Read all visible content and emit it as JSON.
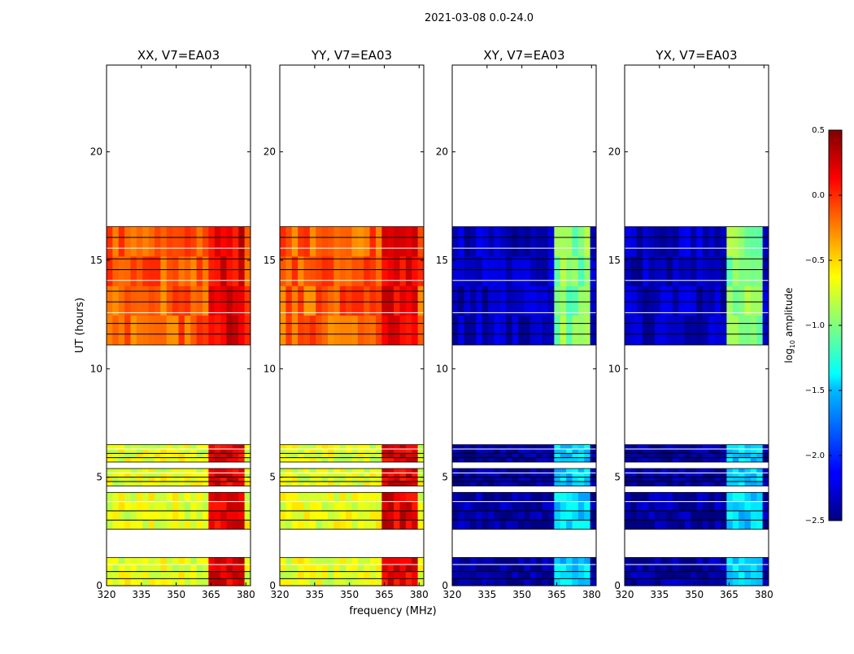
{
  "chart_data": {
    "type": "heatmap",
    "suptitle": "2021-03-08 0.0-24.0",
    "xlabel": "frequency (MHz)",
    "ylabel": "UT (hours)",
    "xlim": [
      320,
      382
    ],
    "ylim": [
      0,
      24
    ],
    "xticks": [
      "320",
      "335",
      "350",
      "365",
      "380"
    ],
    "yticks": [
      "0",
      "5",
      "10",
      "15",
      "20"
    ],
    "xtick_values": [
      320,
      335,
      350,
      365,
      380
    ],
    "ytick_values": [
      0,
      5,
      10,
      15,
      20
    ],
    "colorbar": {
      "label": "log10 amplitude",
      "range": [
        -2.5,
        0.5
      ],
      "ticks": [
        "0.5",
        "0.0",
        "−0.5",
        "−1.0",
        "−1.5",
        "−2.0",
        "−2.5"
      ],
      "tick_values": [
        0.5,
        0.0,
        -0.5,
        -1.0,
        -1.5,
        -2.0,
        -2.5
      ],
      "colormap": "jet"
    },
    "data_segments_hours": [
      [
        0.0,
        1.3
      ],
      [
        2.6,
        4.3
      ],
      [
        4.6,
        5.4
      ],
      [
        5.7,
        6.5
      ],
      [
        11.1,
        16.55
      ]
    ],
    "bright_band_mhz": [
      363,
      380
    ],
    "panels": [
      {
        "title": "XX, V7=EA03",
        "base_level": -0.15,
        "band_level": 0.2,
        "low_segments_level": -0.7
      },
      {
        "title": "YY, V7=EA03",
        "base_level": -0.15,
        "band_level": 0.2,
        "low_segments_level": -0.7
      },
      {
        "title": "XY, V7=EA03",
        "base_level": -2.3,
        "band_level": -1.0,
        "low_segments_level": -2.4
      },
      {
        "title": "YX, V7=EA03",
        "base_level": -2.3,
        "band_level": -1.0,
        "low_segments_level": -2.4
      }
    ]
  }
}
